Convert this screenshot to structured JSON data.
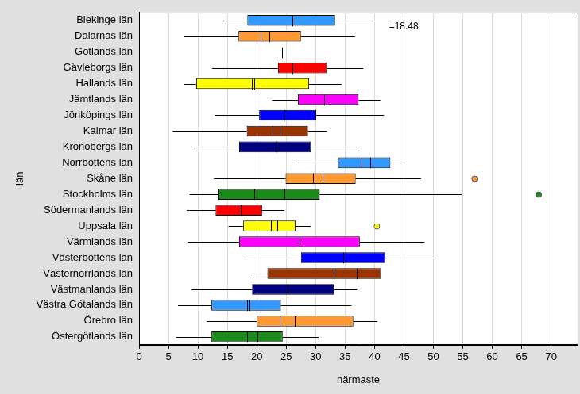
{
  "chart_data": {
    "type": "boxplot",
    "orientation": "horizontal",
    "annotation": "=18.48",
    "x_label": "närmaste",
    "y_label": "län",
    "categories": [
      "Blekinge län",
      "Dalarnas län",
      "Gotlands län",
      "Gävleborgs län",
      "Hallands län",
      "Jämtlands län",
      "Jönköpings län",
      "Kalmar län",
      "Kronobergs län",
      "Norrbottens län",
      "Skåne län",
      "Stockholms län",
      "Södermanlands län",
      "Uppsala län",
      "Värmlands län",
      "Västerbottens län",
      "Västernorrlands län",
      "Västmanlands län",
      "Västra Götalands län",
      "Örebro län",
      "Östergötlands län"
    ],
    "min": [
      14.3,
      7.7,
      24.3,
      12.4,
      7.7,
      22.6,
      12.9,
      5.7,
      8.9,
      26.3,
      12.7,
      8.6,
      8.1,
      15.2,
      8.3,
      18.3,
      18.6,
      8.9,
      6.6,
      11.5,
      6.3
    ],
    "q1": [
      18.4,
      16.9,
      24.3,
      23.6,
      9.7,
      27.0,
      20.4,
      18.3,
      17.0,
      33.8,
      24.9,
      13.5,
      13.0,
      17.7,
      17.0,
      27.5,
      21.8,
      19.2,
      12.3,
      20.0,
      12.3
    ],
    "median": [
      26.1,
      20.7,
      24.3,
      26.1,
      19.6,
      31.5,
      24.7,
      22.7,
      23.3,
      37.8,
      31.2,
      19.6,
      17.3,
      22.4,
      27.2,
      34.7,
      37.0,
      25.3,
      18.3,
      23.9,
      18.4
    ],
    "mean": [
      null,
      22.1,
      null,
      null,
      19.2,
      null,
      null,
      23.9,
      null,
      39.3,
      29.5,
      24.7,
      null,
      23.5,
      null,
      null,
      33.0,
      null,
      18.7,
      26.4,
      20.1
    ],
    "q3": [
      33.3,
      27.5,
      24.3,
      31.9,
      28.9,
      37.3,
      30.1,
      28.7,
      29.2,
      42.7,
      36.8,
      30.7,
      20.9,
      26.6,
      37.5,
      41.8,
      41.1,
      33.2,
      24.1,
      36.4,
      24.4
    ],
    "max": [
      39.3,
      36.7,
      24.3,
      38.1,
      34.4,
      41.0,
      41.6,
      31.9,
      37.0,
      44.7,
      47.9,
      54.8,
      24.7,
      29.2,
      48.5,
      50.0,
      41.1,
      37.0,
      36.1,
      40.5,
      30.5
    ],
    "outliers": [
      [],
      [],
      [],
      [],
      [],
      [],
      [],
      [],
      [],
      [],
      [
        57.0
      ],
      [
        67.9
      ],
      [],
      [
        40.4
      ],
      [],
      [],
      [],
      [],
      [],
      [],
      []
    ],
    "colors": [
      "#3399ff",
      "#ff9933",
      "#1a8a1a",
      "#ff0000",
      "#ffff00",
      "#ff00ff",
      "#0000ff",
      "#993300",
      "#000080",
      "#3399ff",
      "#ff9933",
      "#1a8a1a",
      "#ff0000",
      "#ffff00",
      "#ff00ff",
      "#0000ff",
      "#993300",
      "#000080",
      "#3399ff",
      "#ff9933",
      "#1a8a1a"
    ],
    "xlim": [
      0,
      74.5
    ],
    "xticks": [
      0,
      5,
      10,
      15,
      20,
      25,
      30,
      35,
      40,
      45,
      50,
      55,
      60,
      65,
      70
    ],
    "grid": true
  }
}
